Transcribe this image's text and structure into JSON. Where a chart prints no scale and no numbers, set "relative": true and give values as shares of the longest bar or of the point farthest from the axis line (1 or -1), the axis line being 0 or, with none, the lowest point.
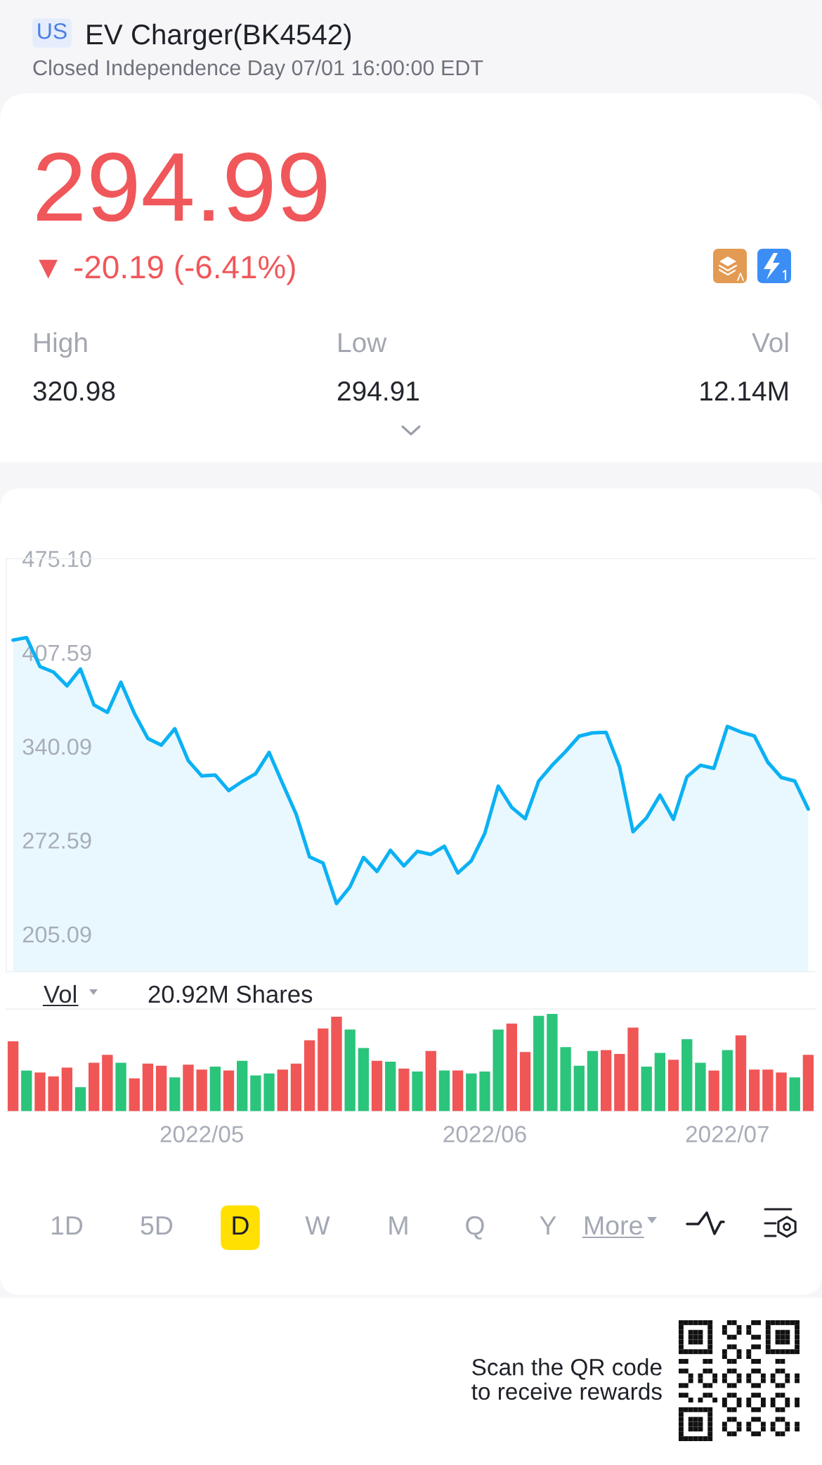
{
  "chart_data": [
    {
      "type": "area",
      "title": "EV Charger(BK4542)",
      "subtitle": "Closed Independence Day 07/01 16:00:00 EDT",
      "categories": [
        null,
        null,
        null,
        null,
        null,
        null,
        null,
        null,
        null,
        null,
        null,
        null,
        null,
        null,
        "2022/05",
        null,
        null,
        null,
        null,
        null,
        null,
        null,
        null,
        null,
        null,
        null,
        null,
        null,
        null,
        null,
        null,
        null,
        null,
        null,
        null,
        "2022/06",
        null,
        null,
        null,
        null,
        null,
        null,
        null,
        null,
        null,
        null,
        null,
        null,
        null,
        null,
        null,
        null,
        null,
        "2022/07",
        null,
        null,
        null,
        null,
        null,
        null
      ],
      "values": [
        416.5,
        418.3,
        397.4,
        393.5,
        383.6,
        395.7,
        369.9,
        364.5,
        386.2,
        363.8,
        345.8,
        341.0,
        352.8,
        329.8,
        318.8,
        319.5,
        308.3,
        314.8,
        320.4,
        335.7,
        313.3,
        291.4,
        260.6,
        256.2,
        227.0,
        239.1,
        260.2,
        250.1,
        265.4,
        254.1,
        264.6,
        262.4,
        268.3,
        249.0,
        257.8,
        277.5,
        311.5,
        296.2,
        288.1,
        315.1,
        326.5,
        336.4,
        347.4,
        349.8,
        350.2,
        325.4,
        278.7,
        288.7,
        305.0,
        287.6,
        318.2,
        326.5,
        324.3,
        354.4,
        350.4,
        347.6,
        328.7,
        317.7,
        315.2,
        295.0
      ],
      "color": "#0BB1F4",
      "ylim": [
        178,
        475.1
      ],
      "yticks": [
        205.09,
        272.59,
        340.09,
        407.59,
        {
          "value": 475.1,
          "label": "475.10"
        }
      ],
      "tick_labels": "y",
      "annotations": [
        "US",
        "294.99",
        "▼ -20.19 (-6.41%)",
        "High",
        "320.98",
        "Low",
        "294.91",
        "Vol",
        "12.14M"
      ]
    },
    {
      "type": "bar",
      "categories": [
        null,
        null,
        null,
        null,
        null,
        null,
        null,
        null,
        null,
        null,
        null,
        null,
        null,
        null,
        "2022/05",
        null,
        null,
        null,
        null,
        null,
        null,
        null,
        null,
        null,
        null,
        null,
        null,
        null,
        null,
        null,
        null,
        null,
        null,
        null,
        null,
        "2022/06",
        null,
        null,
        null,
        null,
        null,
        null,
        null,
        null,
        null,
        null,
        null,
        null,
        null,
        null,
        null,
        null,
        null,
        "2022/07",
        null,
        null,
        null,
        null,
        null,
        null
      ],
      "values": [
        0.72,
        0.42,
        0.4,
        0.36,
        0.45,
        0.25,
        0.5,
        0.58,
        0.5,
        0.34,
        0.49,
        0.47,
        0.35,
        0.48,
        0.43,
        0.46,
        0.42,
        0.52,
        0.37,
        0.39,
        0.43,
        0.49,
        0.73,
        0.85,
        0.97,
        0.84,
        0.65,
        0.52,
        0.51,
        0.44,
        0.41,
        0.62,
        0.42,
        0.42,
        0.39,
        0.41,
        0.84,
        0.9,
        0.61,
        0.98,
        1.0,
        0.66,
        0.47,
        0.62,
        0.63,
        0.59,
        0.86,
        0.46,
        0.6,
        0.53,
        0.74,
        0.5,
        0.42,
        0.63,
        0.78,
        0.43,
        0.43,
        0.4,
        0.35,
        0.58
      ],
      "colors": [
        "#F05656",
        "#2BC47B",
        "#F05656",
        "#F05656",
        "#F05656",
        "#2BC47B",
        "#F05656",
        "#F05656",
        "#2BC47B",
        "#F05656",
        "#F05656",
        "#F05656",
        "#2BC47B",
        "#F05656",
        "#F05656",
        "#2BC47B",
        "#F05656",
        "#2BC47B",
        "#2BC47B",
        "#2BC47B",
        "#F05656",
        "#F05656",
        "#F05656",
        "#F05656",
        "#F05656",
        "#2BC47B",
        "#2BC47B",
        "#F05656",
        "#2BC47B",
        "#F05656",
        "#2BC47B",
        "#F05656",
        "#2BC47B",
        "#F05656",
        "#2BC47B",
        "#2BC47B",
        "#2BC47B",
        "#F05656",
        "#F05656",
        "#2BC47B",
        "#2BC47B",
        "#2BC47B",
        "#2BC47B",
        "#2BC47B",
        "#F05656",
        "#F05656",
        "#F05656",
        "#2BC47B",
        "#2BC47B",
        "#F05656",
        "#2BC47B",
        "#2BC47B",
        "#F05656",
        "#2BC47B",
        "#F05656",
        "#F05656",
        "#F05656",
        "#F05656",
        "#2BC47B",
        "#F05656"
      ],
      "relative": true,
      "tick_labels": "x",
      "annotations": [
        "Vol",
        "20.92M Shares",
        "1D",
        "5D",
        "D",
        "W",
        "M",
        "Q",
        "Y",
        "More",
        "Scan the QR code\nto receive rewards"
      ]
    }
  ]
}
